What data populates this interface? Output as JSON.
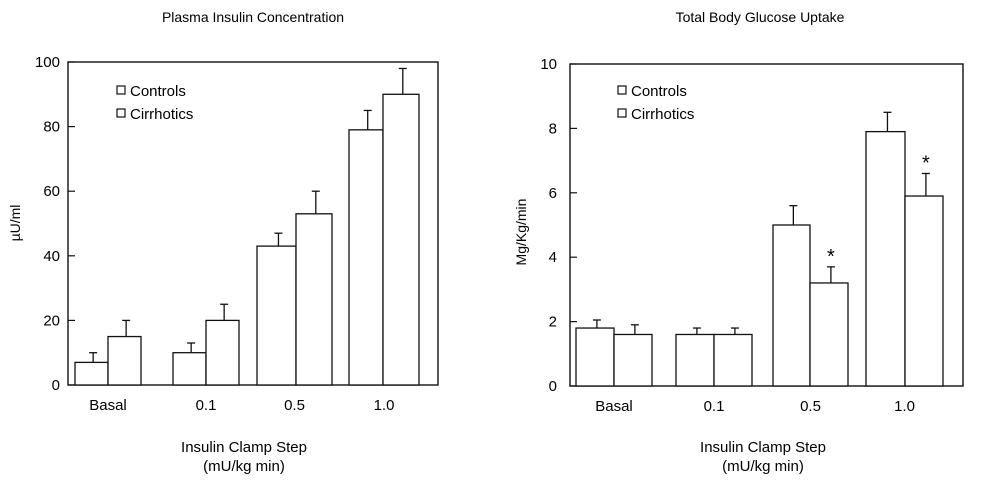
{
  "chart_data": [
    {
      "type": "bar",
      "title": "Plasma Insulin Concentration",
      "ylabel": "µU/ml",
      "xlabel": "Insulin Clamp Step",
      "xlabel2": "(mU/kg min)",
      "categories": [
        "Basal",
        "0.1",
        "0.5",
        "1.0"
      ],
      "ylim": [
        0,
        100
      ],
      "yticks": [
        "0",
        "20",
        "40",
        "60",
        "80",
        "100"
      ],
      "legend_placement": "top-left",
      "series": [
        {
          "name": "Controls",
          "values": [
            7,
            10,
            43,
            79
          ],
          "errors": [
            3,
            3,
            4,
            6
          ],
          "stars": [
            false,
            false,
            false,
            false
          ]
        },
        {
          "name": "Cirrhotics",
          "values": [
            15,
            20,
            53,
            90
          ],
          "errors": [
            5,
            5,
            7,
            8
          ],
          "stars": [
            false,
            false,
            false,
            false
          ]
        }
      ]
    },
    {
      "type": "bar",
      "title": "Total Body Glucose Uptake",
      "ylabel": "Mg/Kg/min",
      "xlabel": "Insulin Clamp Step",
      "xlabel2": "(mU/kg min)",
      "categories": [
        "Basal",
        "0.1",
        "0.5",
        "1.0"
      ],
      "ylim": [
        0,
        10
      ],
      "yticks": [
        "0",
        "2",
        "4",
        "6",
        "8",
        "10"
      ],
      "legend_placement": "top-left",
      "series": [
        {
          "name": "Controls",
          "values": [
            1.8,
            1.6,
            5.0,
            7.9
          ],
          "errors": [
            0.25,
            0.2,
            0.6,
            0.6
          ],
          "stars": [
            false,
            false,
            false,
            false
          ]
        },
        {
          "name": "Cirrhotics",
          "values": [
            1.6,
            1.6,
            3.2,
            5.9
          ],
          "errors": [
            0.3,
            0.2,
            0.5,
            0.7
          ],
          "stars": [
            false,
            false,
            true,
            true
          ]
        }
      ],
      "annotation": "*"
    }
  ]
}
